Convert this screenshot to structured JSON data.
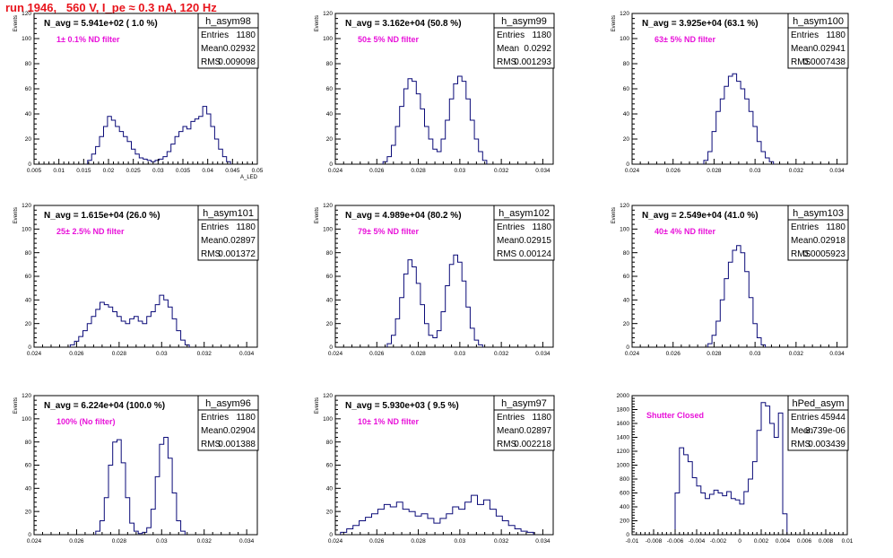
{
  "page_title": "run 1946,   560 V, I_pe ≈ 0.3 nA, 120 Hz",
  "colors": {
    "histogram": "#0a0a78",
    "annotation": "#e812d9",
    "title": "#e8141c",
    "axis": "#000000"
  },
  "chart_data": [
    {
      "type": "bar",
      "name": "h_asym98",
      "ylabel": "Events",
      "xlabel": "A_LED",
      "xlim": [
        0.005,
        0.05
      ],
      "ylim": [
        0,
        120
      ],
      "xticks": [
        "0.005",
        "0.01",
        "0.015",
        "0.02",
        "0.025",
        "0.03",
        "0.035",
        "0.04",
        "0.045",
        "0.05"
      ],
      "yticks": [
        "0",
        "20",
        "40",
        "60",
        "80",
        "100",
        "120"
      ],
      "navg": "N_avg = 5.941e+02 ( 1.0 %)",
      "filter": "1± 0.1% ND filter",
      "stats": {
        "entries": "1180",
        "mean": "0.02932",
        "rms": "0.009098"
      },
      "x": [
        0.0162,
        0.017,
        0.0178,
        0.0186,
        0.0194,
        0.0202,
        0.021,
        0.0218,
        0.0226,
        0.0234,
        0.0242,
        0.025,
        0.0258,
        0.0266,
        0.0274,
        0.0282,
        0.029,
        0.0298,
        0.0306,
        0.0314,
        0.0322,
        0.033,
        0.0338,
        0.0346,
        0.0354,
        0.0362,
        0.037,
        0.0378,
        0.0386,
        0.0394,
        0.0402,
        0.041,
        0.0418,
        0.0426,
        0.0434,
        0.0442
      ],
      "values": [
        3,
        8,
        14,
        22,
        30,
        38,
        35,
        30,
        26,
        22,
        18,
        12,
        8,
        5,
        4,
        3,
        2,
        3,
        4,
        6,
        10,
        16,
        22,
        26,
        30,
        28,
        34,
        36,
        38,
        46,
        40,
        30,
        20,
        12,
        6,
        2
      ]
    },
    {
      "type": "bar",
      "name": "h_asym99",
      "ylabel": "Events",
      "xlabel": "",
      "xlim": [
        0.024,
        0.0345
      ],
      "ylim": [
        0,
        120
      ],
      "xticks": [
        "0.024",
        "0.026",
        "0.028",
        "0.03",
        "0.032",
        "0.034"
      ],
      "yticks": [
        "0",
        "20",
        "40",
        "60",
        "80",
        "100",
        "120"
      ],
      "navg": "N_avg = 3.162e+04 (50.8 %)",
      "filter": "50± 5% ND filter",
      "stats": {
        "entries": "1180",
        "mean": "0.0292",
        "rms": "0.001293"
      },
      "x": [
        0.0264,
        0.0266,
        0.0268,
        0.027,
        0.0272,
        0.0274,
        0.0276,
        0.0278,
        0.028,
        0.0282,
        0.0284,
        0.0286,
        0.0288,
        0.029,
        0.0292,
        0.0294,
        0.0296,
        0.0298,
        0.03,
        0.0302,
        0.0304,
        0.0306,
        0.0308,
        0.031,
        0.0312
      ],
      "values": [
        2,
        6,
        15,
        30,
        46,
        60,
        68,
        66,
        56,
        44,
        30,
        20,
        12,
        10,
        20,
        35,
        52,
        64,
        70,
        66,
        52,
        35,
        20,
        10,
        3
      ]
    },
    {
      "type": "bar",
      "name": "h_asym100",
      "ylabel": "Events",
      "xlabel": "",
      "xlim": [
        0.024,
        0.0345
      ],
      "ylim": [
        0,
        120
      ],
      "xticks": [
        "0.024",
        "0.026",
        "0.028",
        "0.03",
        "0.032",
        "0.034"
      ],
      "yticks": [
        "0",
        "20",
        "40",
        "60",
        "80",
        "100",
        "120"
      ],
      "navg": "N_avg = 3.925e+04 (63.1 %)",
      "filter": "63± 5% ND filter",
      "stats": {
        "entries": "1180",
        "mean": "0.02941",
        "rms": "0.0007438"
      },
      "x": [
        0.0276,
        0.0278,
        0.028,
        0.0282,
        0.0284,
        0.0286,
        0.0288,
        0.029,
        0.0292,
        0.0294,
        0.0296,
        0.0298,
        0.03,
        0.0302,
        0.0304,
        0.0306,
        0.0308
      ],
      "values": [
        3,
        10,
        26,
        42,
        52,
        62,
        70,
        72,
        66,
        60,
        52,
        42,
        30,
        18,
        10,
        5,
        2
      ]
    },
    {
      "type": "bar",
      "name": "h_asym101",
      "ylabel": "Events",
      "xlabel": "",
      "xlim": [
        0.024,
        0.0345
      ],
      "ylim": [
        0,
        120
      ],
      "xticks": [
        "0.024",
        "0.026",
        "0.028",
        "0.03",
        "0.032",
        "0.034"
      ],
      "yticks": [
        "0",
        "20",
        "40",
        "60",
        "80",
        "100",
        "120"
      ],
      "navg": "N_avg = 1.615e+04 (26.0 %)",
      "filter": "25± 2.5% ND filter",
      "stats": {
        "entries": "1180",
        "mean": "0.02897",
        "rms": "0.001372"
      },
      "x": [
        0.0258,
        0.026,
        0.0262,
        0.0264,
        0.0266,
        0.0268,
        0.027,
        0.0272,
        0.0274,
        0.0276,
        0.0278,
        0.028,
        0.0282,
        0.0284,
        0.0286,
        0.0288,
        0.029,
        0.0292,
        0.0294,
        0.0296,
        0.0298,
        0.03,
        0.0302,
        0.0304,
        0.0306,
        0.0308,
        0.031,
        0.0312
      ],
      "values": [
        2,
        5,
        9,
        14,
        20,
        26,
        32,
        38,
        36,
        34,
        30,
        26,
        22,
        20,
        24,
        26,
        22,
        20,
        26,
        30,
        36,
        44,
        40,
        34,
        24,
        14,
        6,
        2
      ]
    },
    {
      "type": "bar",
      "name": "h_asym102",
      "ylabel": "Events",
      "xlabel": "",
      "xlim": [
        0.024,
        0.0345
      ],
      "ylim": [
        0,
        120
      ],
      "xticks": [
        "0.024",
        "0.026",
        "0.028",
        "0.03",
        "0.032",
        "0.034"
      ],
      "yticks": [
        "0",
        "20",
        "40",
        "60",
        "80",
        "100",
        "120"
      ],
      "navg": "N_avg = 4.989e+04 (80.2 %)",
      "filter": "79± 5% ND filter",
      "stats": {
        "entries": "1180",
        "mean": "0.02915",
        "rms": "0.00124"
      },
      "x": [
        0.0266,
        0.0268,
        0.027,
        0.0272,
        0.0274,
        0.0276,
        0.0278,
        0.028,
        0.0282,
        0.0284,
        0.0286,
        0.0288,
        0.029,
        0.0292,
        0.0294,
        0.0296,
        0.0298,
        0.03,
        0.0302,
        0.0304,
        0.0306,
        0.0308,
        0.031
      ],
      "values": [
        3,
        10,
        24,
        42,
        62,
        74,
        68,
        54,
        36,
        20,
        10,
        8,
        14,
        30,
        52,
        70,
        78,
        72,
        56,
        34,
        16,
        6,
        2
      ]
    },
    {
      "type": "bar",
      "name": "h_asym103",
      "ylabel": "Events",
      "xlabel": "",
      "xlim": [
        0.024,
        0.0345
      ],
      "ylim": [
        0,
        120
      ],
      "xticks": [
        "0.024",
        "0.026",
        "0.028",
        "0.03",
        "0.032",
        "0.034"
      ],
      "yticks": [
        "0",
        "20",
        "40",
        "60",
        "80",
        "100",
        "120"
      ],
      "navg": "N_avg = 2.549e+04 (41.0 %)",
      "filter": "40± 4% ND filter",
      "stats": {
        "entries": "1180",
        "mean": "0.02918",
        "rms": "0.0005923"
      },
      "x": [
        0.0278,
        0.028,
        0.0282,
        0.0284,
        0.0286,
        0.0288,
        0.029,
        0.0292,
        0.0294,
        0.0296,
        0.0298,
        0.03,
        0.0302,
        0.0304
      ],
      "values": [
        3,
        10,
        22,
        40,
        58,
        72,
        82,
        86,
        80,
        64,
        42,
        20,
        8,
        2
      ]
    },
    {
      "type": "bar",
      "name": "h_asym96",
      "ylabel": "Events",
      "xlabel": "",
      "xlim": [
        0.024,
        0.0345
      ],
      "ylim": [
        0,
        120
      ],
      "xticks": [
        "0.024",
        "0.026",
        "0.028",
        "0.03",
        "0.032",
        "0.034"
      ],
      "yticks": [
        "0",
        "20",
        "40",
        "60",
        "80",
        "100",
        "120"
      ],
      "navg": "N_avg = 6.224e+04 (100.0 %)",
      "filter": "100% (No filter)",
      "stats": {
        "entries": "1180",
        "mean": "0.02904",
        "rms": "0.001388"
      },
      "x": [
        0.027,
        0.0272,
        0.0274,
        0.0276,
        0.0278,
        0.028,
        0.0282,
        0.0284,
        0.0286,
        0.0288,
        0.029,
        0.0292,
        0.0294,
        0.0296,
        0.0298,
        0.03,
        0.0302,
        0.0304,
        0.0306,
        0.0308,
        0.031
      ],
      "values": [
        3,
        12,
        32,
        60,
        80,
        82,
        62,
        32,
        10,
        3,
        1,
        2,
        6,
        22,
        50,
        78,
        84,
        66,
        36,
        12,
        3
      ]
    },
    {
      "type": "bar",
      "name": "h_asym97",
      "ylabel": "Events",
      "xlabel": "",
      "xlim": [
        0.024,
        0.0345
      ],
      "ylim": [
        0,
        120
      ],
      "xticks": [
        "0.024",
        "0.026",
        "0.028",
        "0.03",
        "0.032",
        "0.034"
      ],
      "yticks": [
        "0",
        "20",
        "40",
        "60",
        "80",
        "100",
        "120"
      ],
      "navg": "N_avg = 5.930e+03 ( 9.5 %)",
      "filter": "10± 1% ND filter",
      "stats": {
        "entries": "1180",
        "mean": "0.02897",
        "rms": "0.002218"
      },
      "x": [
        0.0244,
        0.0247,
        0.025,
        0.0253,
        0.0256,
        0.0259,
        0.0262,
        0.0265,
        0.0268,
        0.0271,
        0.0274,
        0.0277,
        0.028,
        0.0283,
        0.0286,
        0.0289,
        0.0292,
        0.0295,
        0.0298,
        0.0301,
        0.0304,
        0.0307,
        0.031,
        0.0313,
        0.0316,
        0.0319,
        0.0322,
        0.0325,
        0.0328,
        0.0331,
        0.0334
      ],
      "values": [
        2,
        5,
        8,
        12,
        15,
        18,
        22,
        26,
        24,
        28,
        22,
        20,
        16,
        18,
        14,
        10,
        14,
        18,
        24,
        22,
        28,
        34,
        26,
        30,
        22,
        16,
        12,
        8,
        5,
        3,
        2
      ]
    },
    {
      "type": "bar",
      "name": "hPed_asym",
      "ylabel": "",
      "xlabel": "",
      "xlim": [
        -0.01,
        0.01
      ],
      "ylim": [
        0,
        2000
      ],
      "xticks": [
        "-0.01",
        "-0.008",
        "-0.006",
        "-0.004",
        "-0.002",
        "0",
        "0.002",
        "0.004",
        "0.006",
        "0.008",
        "0.01"
      ],
      "yticks": [
        "0",
        "200",
        "400",
        "600",
        "800",
        "1000",
        "1200",
        "1400",
        "1600",
        "1800",
        "2000"
      ],
      "navg": "",
      "filter": "Shutter Closed",
      "stats": {
        "entries": "45944",
        "mean": "-3.739e-06",
        "rms": "0.003439"
      },
      "x": [
        -0.0058,
        -0.0054,
        -0.005,
        -0.0046,
        -0.0042,
        -0.0038,
        -0.0034,
        -0.003,
        -0.0026,
        -0.0022,
        -0.0018,
        -0.0014,
        -0.001,
        -0.0006,
        -0.0002,
        0.0002,
        0.0006,
        0.001,
        0.0014,
        0.0018,
        0.0022,
        0.0026,
        0.003,
        0.0034,
        0.0038,
        0.0042
      ],
      "values": [
        600,
        1250,
        1150,
        1050,
        820,
        700,
        600,
        520,
        580,
        640,
        600,
        560,
        620,
        520,
        500,
        440,
        620,
        800,
        1050,
        1500,
        1900,
        1850,
        1600,
        1400,
        1750,
        300
      ]
    }
  ]
}
